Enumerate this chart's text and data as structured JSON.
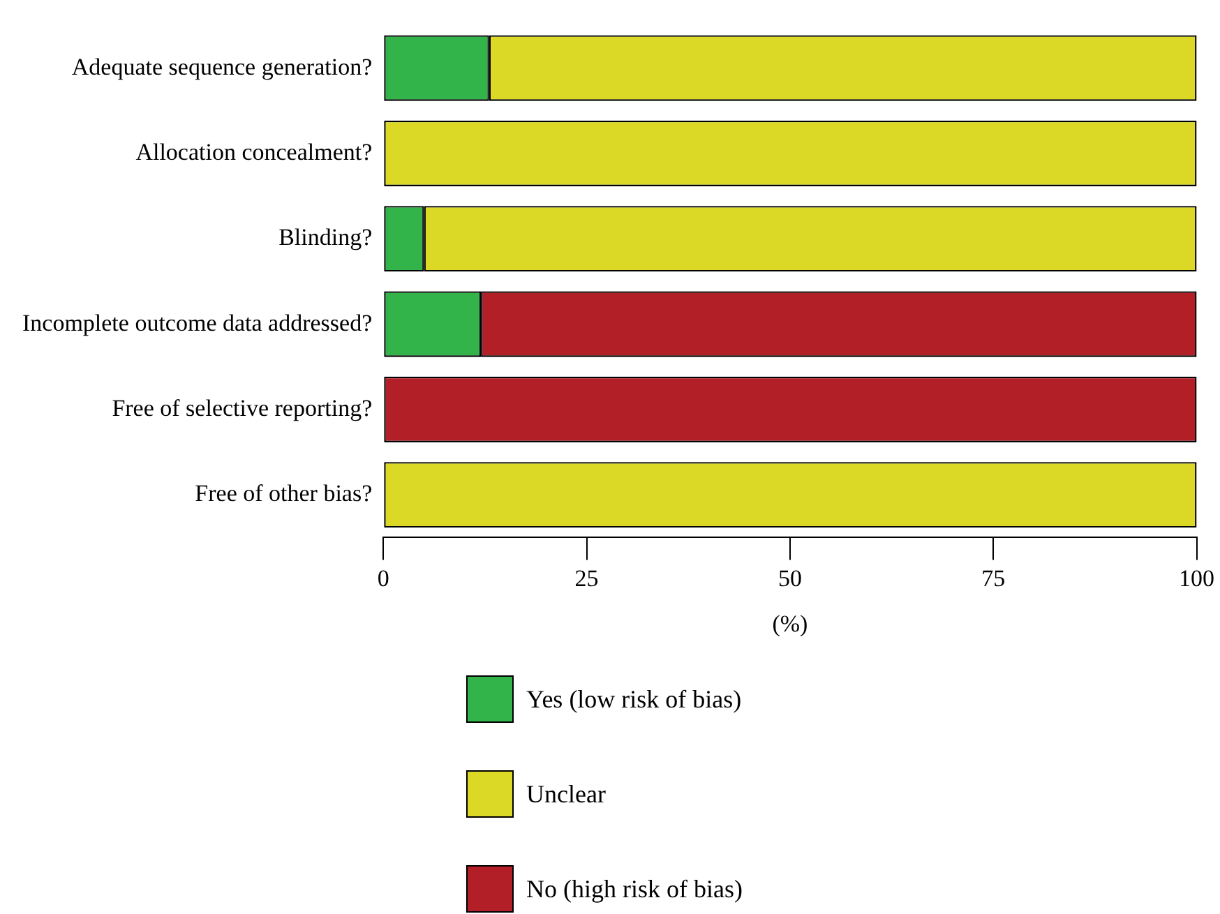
{
  "chart_data": {
    "type": "bar",
    "orientation": "horizontal",
    "stacked": true,
    "xlabel": "(%)",
    "categories": [
      "Adequate sequence generation?",
      "Allocation concealment?",
      "Blinding?",
      "Incomplete outcome data addressed?",
      "Free of selective reporting?",
      "Free of other bias?"
    ],
    "series": [
      {
        "name": "Yes (low risk of bias)",
        "color": "#33b44a",
        "values": [
          13,
          0,
          5,
          12,
          0,
          0
        ]
      },
      {
        "name": "Unclear",
        "color": "#dbd925",
        "values": [
          87,
          100,
          95,
          0,
          0,
          100
        ]
      },
      {
        "name": "No (high risk of bias)",
        "color": "#b31f27",
        "values": [
          0,
          0,
          0,
          88,
          100,
          0
        ]
      }
    ],
    "xlim": [
      0,
      100
    ],
    "xticks": [
      0,
      25,
      50,
      75,
      100
    ],
    "grid": false,
    "legend": "bottom"
  }
}
